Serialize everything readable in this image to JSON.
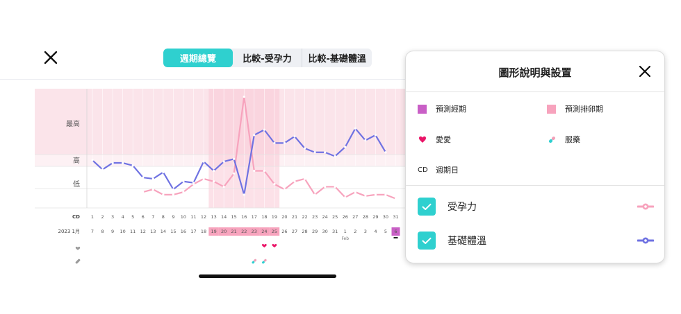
{
  "tabs": [
    "週期總覽",
    "比較-受孕力",
    "比較-基礎體溫"
  ],
  "chart": {
    "y_levels": [
      "最高",
      "高",
      "低"
    ],
    "cd_label": "CD",
    "cd_days": [
      "1",
      "2",
      "3",
      "4",
      "5",
      "6",
      "7",
      "8",
      "9",
      "10",
      "11",
      "12",
      "13",
      "14",
      "15",
      "16",
      "17",
      "18",
      "19",
      "20",
      "21",
      "22",
      "23",
      "24",
      "25",
      "26",
      "27",
      "28",
      "29",
      "30",
      "31"
    ],
    "month_label": "2023 1月",
    "dates": [
      "7",
      "8",
      "9",
      "10",
      "11",
      "12",
      "13",
      "14",
      "15",
      "16",
      "17",
      "18",
      "19",
      "20",
      "21",
      "22",
      "23",
      "24",
      "25",
      "26",
      "27",
      "28",
      "29",
      "30",
      "31",
      "1",
      "2",
      "3",
      "4",
      "5",
      "6"
    ],
    "feb_label": "Feb",
    "heart_row_icon": "heart-icon",
    "pill_row_icon": "pill-icon"
  },
  "chart_data": {
    "type": "line",
    "x": [
      1,
      2,
      3,
      4,
      5,
      6,
      7,
      8,
      9,
      10,
      11,
      12,
      13,
      14,
      15,
      16,
      17,
      18,
      19,
      20,
      21,
      22,
      23,
      24,
      25,
      26,
      27,
      28,
      29,
      30,
      31
    ],
    "series": [
      {
        "name": "受孕力",
        "color": "#f7a3bd",
        "values": [
          null,
          null,
          null,
          null,
          null,
          1.1,
          1.2,
          1.0,
          1.0,
          1.1,
          1.4,
          1.6,
          1.5,
          1.3,
          1.8,
          4.7,
          1.9,
          1.9,
          1.4,
          1.2,
          1.5,
          1.6,
          1.0,
          1.3,
          1.3,
          0.9,
          1.1,
          0.95,
          1.0,
          1.0,
          0.85
        ]
      },
      {
        "name": "基礎體溫",
        "color": "#6f72e2",
        "values": [
          2.3,
          1.95,
          2.2,
          2.2,
          2.1,
          1.65,
          1.6,
          1.85,
          1.2,
          1.5,
          1.45,
          2.25,
          1.9,
          2.25,
          2.35,
          1.0,
          3.25,
          3.45,
          2.95,
          2.95,
          3.2,
          2.75,
          2.6,
          2.6,
          2.45,
          2.8,
          3.5,
          3.05,
          3.25,
          2.6,
          null
        ]
      }
    ],
    "markers": {
      "love_days": [
        18,
        19
      ],
      "medication_days": [
        17,
        18
      ],
      "predicted_ovulation_days": [
        13,
        14,
        15,
        16,
        17,
        18,
        19
      ],
      "predicted_period_days": [
        31
      ]
    }
  },
  "legend_panel": {
    "title": "圖形說明與設置",
    "items": [
      {
        "label": "預測經期",
        "color": "#c95fc6"
      },
      {
        "label": "預測排卵期",
        "color": "#f7a3bd"
      },
      {
        "label": "愛愛",
        "icon": "heart-icon"
      },
      {
        "label": "服藥",
        "icon": "pill-icon"
      },
      {
        "prefix": "CD",
        "label": "週期日"
      }
    ],
    "toggles": [
      {
        "label": "受孕力",
        "checked": true,
        "color": "#f7a3bd"
      },
      {
        "label": "基礎體溫",
        "checked": true,
        "color": "#6f72e2"
      }
    ]
  }
}
